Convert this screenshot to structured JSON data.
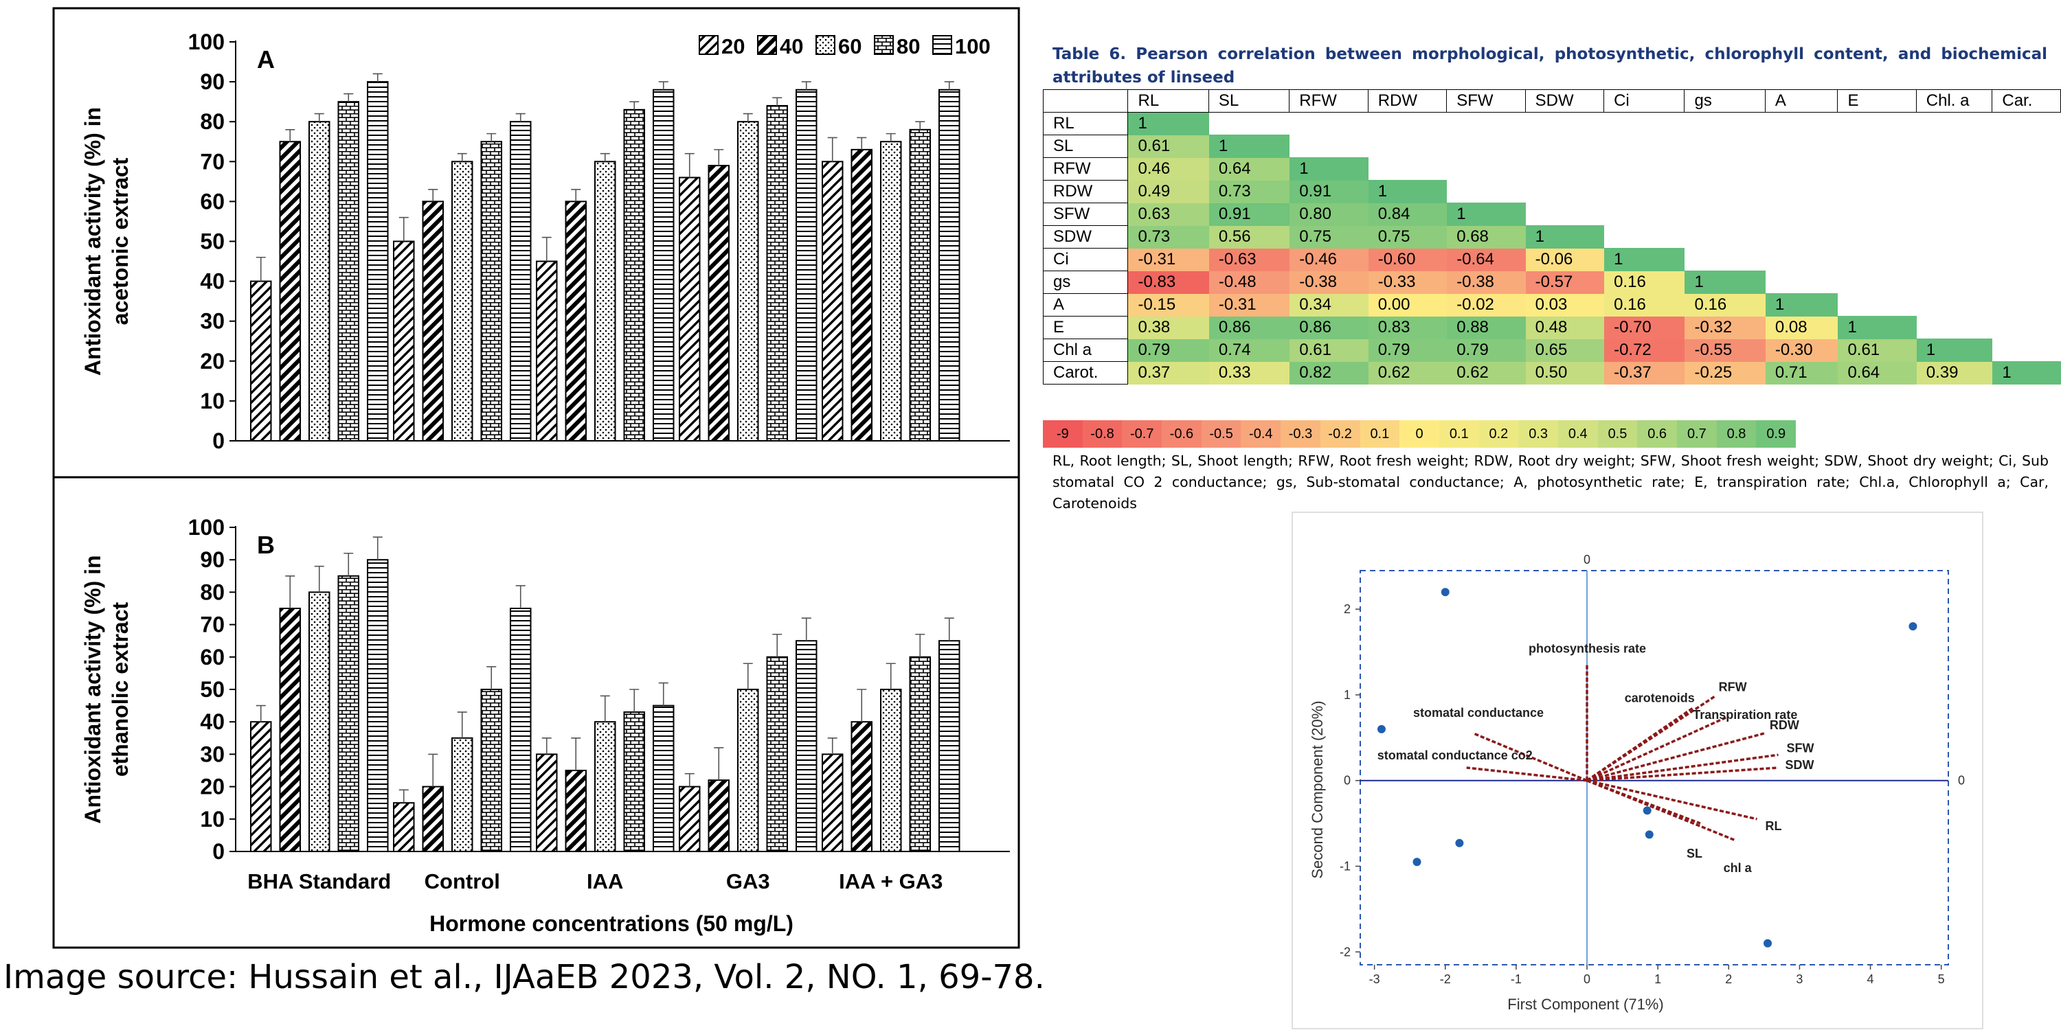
{
  "bar_panel": {
    "legend": [
      "20",
      "40",
      "60",
      "80",
      "100"
    ],
    "x_axis_title": "Hormone concentrations (50 mg/L)"
  },
  "pca": {
    "x_axis_title": "First Component (71%)",
    "y_axis_title": "Second Component (20%)"
  },
  "chart_data": [
    {
      "type": "bar",
      "title": "A",
      "ylabel": "Antioxidant activity (%) in acetonic extract",
      "ylim": [
        0,
        100
      ],
      "yticks": [
        0,
        10,
        20,
        30,
        40,
        50,
        60,
        70,
        80,
        90,
        100
      ],
      "categories": [
        "BHA Standard",
        "Control",
        "IAA",
        "GA3",
        "IAA + GA3"
      ],
      "legend_position": "top-right",
      "series": [
        {
          "name": "20",
          "values": [
            40,
            50,
            45,
            66,
            70
          ],
          "errors": [
            6,
            6,
            6,
            6,
            6
          ]
        },
        {
          "name": "40",
          "values": [
            75,
            60,
            60,
            69,
            73
          ],
          "errors": [
            3,
            3,
            3,
            4,
            3
          ]
        },
        {
          "name": "60",
          "values": [
            80,
            70,
            70,
            80,
            75
          ],
          "errors": [
            2,
            2,
            2,
            2,
            2
          ]
        },
        {
          "name": "80",
          "values": [
            85,
            75,
            83,
            84,
            78
          ],
          "errors": [
            2,
            2,
            2,
            2,
            2
          ]
        },
        {
          "name": "100",
          "values": [
            90,
            80,
            88,
            88,
            88
          ],
          "errors": [
            2,
            2,
            2,
            2,
            2
          ]
        }
      ]
    },
    {
      "type": "bar",
      "title": "B",
      "ylabel": "Antioxidant activity (%) in ethanolic extract",
      "xlabel": "Hormone concentrations (50 mg/L)",
      "ylim": [
        0,
        100
      ],
      "yticks": [
        0,
        10,
        20,
        30,
        40,
        50,
        60,
        70,
        80,
        90,
        100
      ],
      "categories": [
        "BHA Standard",
        "Control",
        "IAA",
        "GA3",
        "IAA + GA3"
      ],
      "series": [
        {
          "name": "20",
          "values": [
            40,
            15,
            30,
            20,
            30
          ],
          "errors": [
            5,
            4,
            5,
            4,
            5
          ]
        },
        {
          "name": "40",
          "values": [
            75,
            20,
            25,
            22,
            40
          ],
          "errors": [
            10,
            10,
            10,
            10,
            10
          ]
        },
        {
          "name": "60",
          "values": [
            80,
            35,
            40,
            50,
            50
          ],
          "errors": [
            8,
            8,
            8,
            8,
            8
          ]
        },
        {
          "name": "80",
          "values": [
            85,
            50,
            43,
            60,
            60
          ],
          "errors": [
            7,
            7,
            7,
            7,
            7
          ]
        },
        {
          "name": "100",
          "values": [
            90,
            75,
            45,
            65,
            65
          ],
          "errors": [
            7,
            7,
            7,
            7,
            7
          ]
        }
      ]
    },
    {
      "type": "table",
      "title": "Table 6. Pearson correlation between morphological, photosynthetic, chlorophyll content, and biochemical attributes of linseed",
      "columns": [
        "RL",
        "SL",
        "RFW",
        "RDW",
        "SFW",
        "SDW",
        "Ci",
        "gs",
        "A",
        "E",
        "Chl. a",
        "Car."
      ],
      "rows": [
        {
          "label": "RL",
          "values": [
            "1"
          ]
        },
        {
          "label": "SL",
          "values": [
            "0.61",
            "1"
          ]
        },
        {
          "label": "RFW",
          "values": [
            "0.46",
            "0.64",
            "1"
          ]
        },
        {
          "label": "RDW",
          "values": [
            "0.49",
            "0.73",
            "0.91",
            "1"
          ]
        },
        {
          "label": "SFW",
          "values": [
            "0.63",
            "0.91",
            "0.80",
            "0.84",
            "1"
          ]
        },
        {
          "label": "SDW",
          "values": [
            "0.73",
            "0.56",
            "0.75",
            "0.75",
            "0.68",
            "1"
          ]
        },
        {
          "label": "Ci",
          "values": [
            "-0.31",
            "-0.63",
            "-0.46",
            "-0.60",
            "-0.64",
            "-0.06",
            "1"
          ]
        },
        {
          "label": "gs",
          "values": [
            "-0.83",
            "-0.48",
            "-0.38",
            "-0.33",
            "-0.38",
            "-0.57",
            "0.16",
            "1"
          ]
        },
        {
          "label": "A",
          "values": [
            "-0.15",
            "-0.31",
            "0.34",
            "0.00",
            "-0.02",
            "0.03",
            "0.16",
            "0.16",
            "1"
          ]
        },
        {
          "label": "E",
          "values": [
            "0.38",
            "0.86",
            "0.86",
            "0.83",
            "0.88",
            "0.48",
            "-0.70",
            "-0.32",
            "0.08",
            "1"
          ]
        },
        {
          "label": "Chl a",
          "values": [
            "0.79",
            "0.74",
            "0.61",
            "0.79",
            "0.79",
            "0.65",
            "-0.72",
            "-0.55",
            "-0.30",
            "0.61",
            "1"
          ]
        },
        {
          "label": "Carot.",
          "values": [
            "0.37",
            "0.33",
            "0.82",
            "0.62",
            "0.62",
            "0.50",
            "-0.37",
            "-0.25",
            "0.71",
            "0.64",
            "0.39",
            "1"
          ]
        }
      ],
      "color_scale": [
        "-9",
        "-0.8",
        "-0.7",
        "-0.6",
        "-0.5",
        "-0.4",
        "-0.3",
        "-0.2",
        "0.1",
        "0",
        "0.1",
        "0.2",
        "0.3",
        "0.4",
        "0.5",
        "0.6",
        "0.7",
        "0.8",
        "0.9"
      ],
      "footnote": "RL, Root length; SL, Shoot length; RFW, Root fresh weight; RDW, Root dry weight; SFW, Shoot fresh weight; SDW, Shoot dry weight; Ci, Sub stomatal CO 2 conductance; gs, Sub-stomatal conductance; A, photosynthetic rate; E, transpiration rate; Chl.a, Chlorophyll a; Car, Carotenoids"
    },
    {
      "type": "scatter",
      "xlabel": "First Component (71%)",
      "ylabel": "Second Component (20%)",
      "xlim": [
        -3.2,
        5.1
      ],
      "ylim": [
        -2.15,
        2.45
      ],
      "xticks": [
        -3,
        -2,
        -1,
        0,
        1,
        2,
        3,
        4,
        5
      ],
      "yticks": [
        -2,
        -1,
        0,
        1,
        2
      ],
      "points": [
        {
          "x": -2.0,
          "y": 2.2
        },
        {
          "x": -2.9,
          "y": 0.6
        },
        {
          "x": -1.8,
          "y": -0.73
        },
        {
          "x": -2.4,
          "y": -0.95
        },
        {
          "x": 0.85,
          "y": -0.35
        },
        {
          "x": 0.88,
          "y": -0.63
        },
        {
          "x": 2.55,
          "y": -1.9
        },
        {
          "x": 4.6,
          "y": 1.8
        }
      ],
      "loadings": [
        {
          "name": "photosynthesis rate",
          "x": 0.0,
          "y": 1.35
        },
        {
          "name": "RFW",
          "x": 1.8,
          "y": 0.98
        },
        {
          "name": "carotenoids",
          "x": 1.5,
          "y": 0.85
        },
        {
          "name": "Transpiration rate",
          "x": 2.0,
          "y": 0.75
        },
        {
          "name": "RDW",
          "x": 2.5,
          "y": 0.55
        },
        {
          "name": "SFW",
          "x": 2.7,
          "y": 0.3
        },
        {
          "name": "SDW",
          "x": 2.7,
          "y": 0.15
        },
        {
          "name": "stomatal conductance",
          "x": -1.6,
          "y": 0.55
        },
        {
          "name": "stomatal conductance co2",
          "x": -1.7,
          "y": 0.15
        },
        {
          "name": "RL",
          "x": 2.4,
          "y": -0.45
        },
        {
          "name": "SL",
          "x": 1.6,
          "y": -0.5
        },
        {
          "name": "chl a",
          "x": 2.1,
          "y": -0.7
        }
      ],
      "axis_zero_labels": [
        "0",
        "0"
      ]
    }
  ],
  "source": "Image source: Hussain et al., IJAaEB 2023, Vol. 2, NO. 1, 69-78."
}
